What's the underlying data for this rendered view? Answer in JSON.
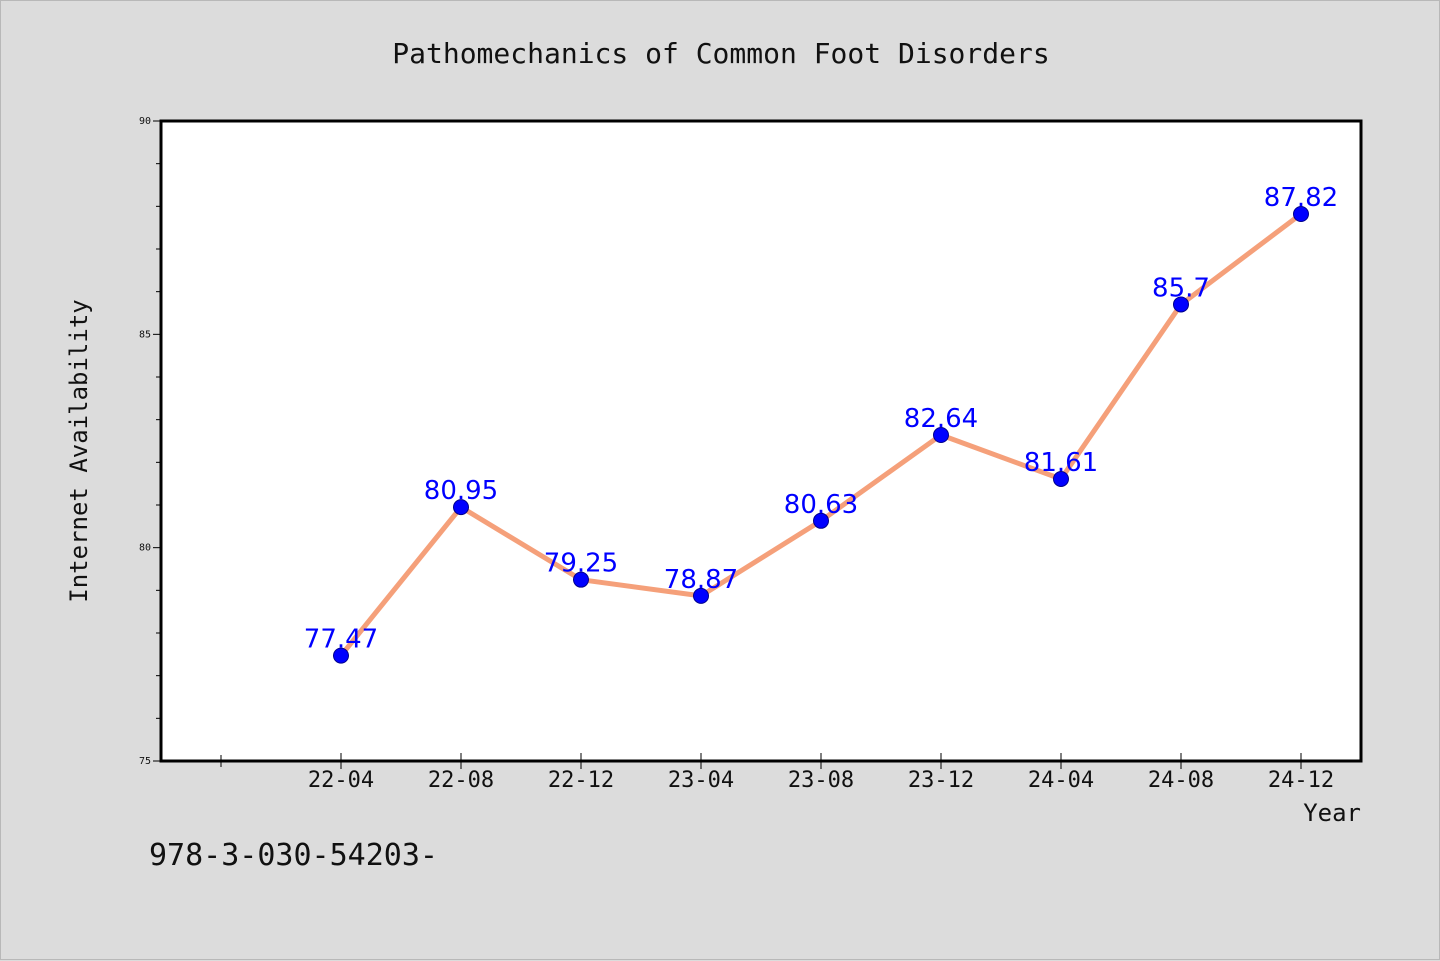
{
  "chart_data": {
    "type": "line",
    "title": "Pathomechanics of Common Foot Disorders",
    "xlabel": "Year",
    "ylabel": "Internet Availability",
    "categories": [
      "22-04",
      "22-08",
      "22-12",
      "23-04",
      "23-08",
      "23-12",
      "24-04",
      "24-08",
      "24-12"
    ],
    "series": [
      {
        "values": [
          77.47,
          80.95,
          79.25,
          78.87,
          80.63,
          82.64,
          81.61,
          85.7,
          87.82
        ],
        "line_color": "#f5a07a",
        "marker_color": "#0000ff"
      }
    ],
    "data_labels": [
      "77.47",
      "80.95",
      "79.25",
      "78.87",
      "80.63",
      "82.64",
      "81.61",
      "85.7",
      "87.82"
    ],
    "ylim": [
      75,
      90
    ],
    "y_ticks": [
      75,
      80,
      85,
      90
    ],
    "y_tick_labels": [
      "75",
      "80",
      "85",
      "90"
    ],
    "grid": false,
    "legend": "none"
  },
  "footnote": "978-3-030-54203-",
  "colors": {
    "background": "#dcdcdc",
    "plot_background": "#ffffff",
    "line": "#f5a07a",
    "marker": "#0000ff",
    "data_label": "#0000ff"
  }
}
